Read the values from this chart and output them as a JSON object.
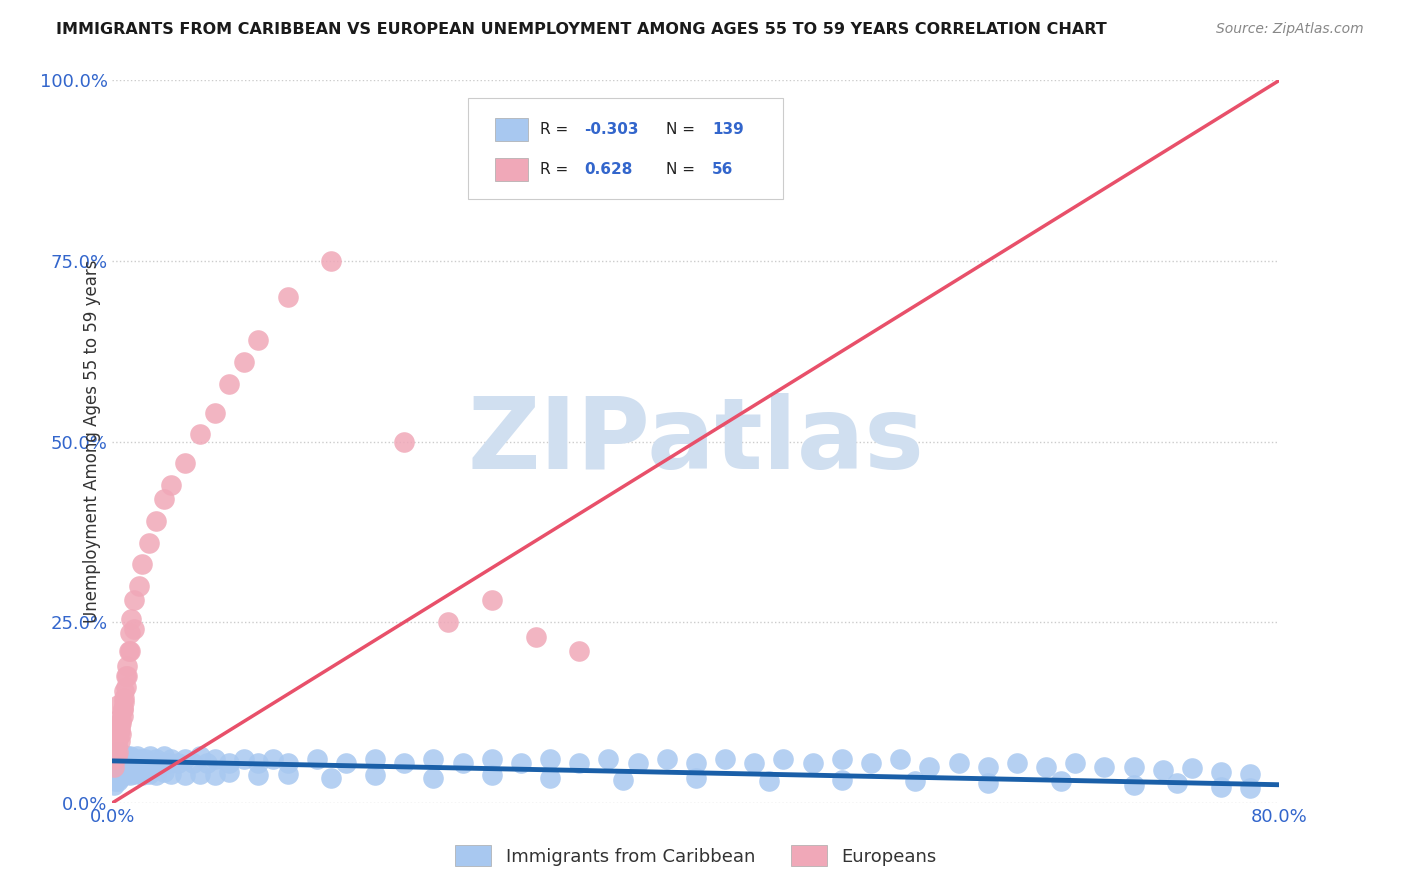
{
  "title": "IMMIGRANTS FROM CARIBBEAN VS EUROPEAN UNEMPLOYMENT AMONG AGES 55 TO 59 YEARS CORRELATION CHART",
  "source": "Source: ZipAtlas.com",
  "watermark": "ZIPatlas",
  "ylabel": "Unemployment Among Ages 55 to 59 years",
  "xlim": [
    0.0,
    0.8
  ],
  "ylim": [
    0.0,
    1.0
  ],
  "ytick_positions": [
    0.0,
    0.25,
    0.5,
    0.75,
    1.0
  ],
  "ytick_labels": [
    "0.0%",
    "25.0%",
    "50.0%",
    "75.0%",
    "100.0%"
  ],
  "blue_color": "#a8c8f0",
  "pink_color": "#f0a8b8",
  "blue_line_color": "#1a5fa8",
  "pink_line_color": "#e8506a",
  "legend_label_blue": "Immigrants from Caribbean",
  "legend_label_pink": "Europeans",
  "title_color": "#1a1a1a",
  "axis_label_color": "#3366cc",
  "watermark_color": "#d0dff0",
  "background_color": "#ffffff",
  "grid_color": "#cccccc",
  "blue_scatter_x": [
    0.001,
    0.001,
    0.002,
    0.002,
    0.002,
    0.003,
    0.003,
    0.003,
    0.003,
    0.004,
    0.004,
    0.004,
    0.005,
    0.005,
    0.005,
    0.005,
    0.006,
    0.006,
    0.006,
    0.007,
    0.007,
    0.007,
    0.008,
    0.008,
    0.009,
    0.009,
    0.01,
    0.01,
    0.01,
    0.011,
    0.011,
    0.012,
    0.012,
    0.013,
    0.014,
    0.015,
    0.015,
    0.016,
    0.017,
    0.018,
    0.019,
    0.02,
    0.022,
    0.024,
    0.026,
    0.028,
    0.03,
    0.032,
    0.035,
    0.038,
    0.04,
    0.045,
    0.05,
    0.055,
    0.06,
    0.065,
    0.07,
    0.08,
    0.09,
    0.1,
    0.11,
    0.12,
    0.14,
    0.16,
    0.18,
    0.2,
    0.22,
    0.24,
    0.26,
    0.28,
    0.3,
    0.32,
    0.34,
    0.36,
    0.38,
    0.4,
    0.42,
    0.44,
    0.46,
    0.48,
    0.5,
    0.52,
    0.54,
    0.56,
    0.58,
    0.6,
    0.62,
    0.64,
    0.66,
    0.68,
    0.7,
    0.72,
    0.74,
    0.76,
    0.78,
    0.002,
    0.003,
    0.004,
    0.005,
    0.006,
    0.007,
    0.008,
    0.009,
    0.01,
    0.012,
    0.015,
    0.018,
    0.02,
    0.025,
    0.03,
    0.035,
    0.04,
    0.05,
    0.06,
    0.07,
    0.08,
    0.1,
    0.12,
    0.15,
    0.18,
    0.22,
    0.26,
    0.3,
    0.35,
    0.4,
    0.45,
    0.5,
    0.55,
    0.6,
    0.65,
    0.7,
    0.73,
    0.76,
    0.78,
    0.001,
    0.002,
    0.003,
    0.004,
    0.005
  ],
  "blue_scatter_y": [
    0.05,
    0.06,
    0.045,
    0.055,
    0.065,
    0.04,
    0.05,
    0.06,
    0.07,
    0.045,
    0.055,
    0.065,
    0.04,
    0.05,
    0.06,
    0.07,
    0.045,
    0.055,
    0.065,
    0.04,
    0.055,
    0.065,
    0.045,
    0.06,
    0.05,
    0.065,
    0.04,
    0.055,
    0.065,
    0.045,
    0.06,
    0.05,
    0.065,
    0.055,
    0.06,
    0.045,
    0.06,
    0.055,
    0.065,
    0.05,
    0.06,
    0.055,
    0.06,
    0.055,
    0.065,
    0.055,
    0.06,
    0.055,
    0.065,
    0.055,
    0.06,
    0.055,
    0.06,
    0.055,
    0.065,
    0.055,
    0.06,
    0.055,
    0.06,
    0.055,
    0.06,
    0.055,
    0.06,
    0.055,
    0.06,
    0.055,
    0.06,
    0.055,
    0.06,
    0.055,
    0.06,
    0.055,
    0.06,
    0.055,
    0.06,
    0.055,
    0.06,
    0.055,
    0.06,
    0.055,
    0.06,
    0.055,
    0.06,
    0.05,
    0.055,
    0.05,
    0.055,
    0.05,
    0.055,
    0.05,
    0.05,
    0.045,
    0.048,
    0.042,
    0.04,
    0.03,
    0.035,
    0.04,
    0.038,
    0.042,
    0.038,
    0.045,
    0.04,
    0.042,
    0.038,
    0.04,
    0.042,
    0.038,
    0.04,
    0.038,
    0.042,
    0.04,
    0.038,
    0.04,
    0.038,
    0.042,
    0.038,
    0.04,
    0.035,
    0.038,
    0.035,
    0.038,
    0.035,
    0.032,
    0.035,
    0.03,
    0.032,
    0.03,
    0.028,
    0.03,
    0.025,
    0.028,
    0.022,
    0.02,
    0.025,
    0.035,
    0.045,
    0.03,
    0.035
  ],
  "pink_scatter_x": [
    0.001,
    0.002,
    0.002,
    0.003,
    0.003,
    0.004,
    0.004,
    0.005,
    0.005,
    0.006,
    0.006,
    0.007,
    0.007,
    0.008,
    0.008,
    0.009,
    0.01,
    0.011,
    0.012,
    0.013,
    0.015,
    0.018,
    0.02,
    0.025,
    0.03,
    0.035,
    0.04,
    0.05,
    0.06,
    0.07,
    0.08,
    0.09,
    0.1,
    0.12,
    0.15,
    0.2,
    0.23,
    0.26,
    0.29,
    0.32,
    0.001,
    0.002,
    0.003,
    0.004,
    0.005,
    0.006,
    0.007,
    0.008,
    0.009,
    0.01,
    0.012,
    0.015,
    0.003,
    0.004,
    0.002,
    0.003
  ],
  "pink_scatter_y": [
    0.05,
    0.06,
    0.07,
    0.065,
    0.08,
    0.07,
    0.09,
    0.085,
    0.1,
    0.095,
    0.11,
    0.12,
    0.13,
    0.14,
    0.155,
    0.175,
    0.19,
    0.21,
    0.235,
    0.255,
    0.28,
    0.3,
    0.33,
    0.36,
    0.39,
    0.42,
    0.44,
    0.47,
    0.51,
    0.54,
    0.58,
    0.61,
    0.64,
    0.7,
    0.75,
    0.5,
    0.25,
    0.28,
    0.23,
    0.21,
    0.065,
    0.075,
    0.085,
    0.095,
    0.105,
    0.115,
    0.13,
    0.145,
    0.16,
    0.175,
    0.21,
    0.24,
    0.115,
    0.135,
    0.07,
    0.09
  ],
  "blue_trend_x": [
    0.0,
    0.8
  ],
  "blue_trend_y": [
    0.058,
    0.025
  ],
  "pink_trend_x": [
    0.0,
    0.8
  ],
  "pink_trend_y": [
    0.0,
    1.0
  ]
}
